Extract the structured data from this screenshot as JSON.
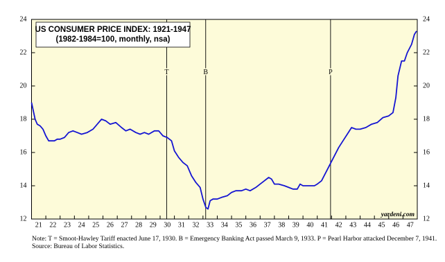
{
  "chart_data": {
    "type": "line",
    "title": "US CONSUMER PRICE INDEX: 1921-1947",
    "subtitle": "(1982-1984=100, monthly, nsa)",
    "source_label": "yardeni.com",
    "note": "Note: T = Smoot-Hawley Tariff enacted June 17, 1930. B = Emergency Banking Act passed March 9, 1933. P = Pearl Harbor attacked December 7, 1941.",
    "source": "Source: Bureau of Labor Statistics.",
    "background": "#fdfbd9",
    "x": [
      1921.0,
      1921.1,
      1921.25,
      1921.4,
      1921.6,
      1921.8,
      1922.0,
      1922.2,
      1922.4,
      1922.6,
      1922.8,
      1923.0,
      1923.3,
      1923.6,
      1923.9,
      1924.2,
      1924.5,
      1924.9,
      1925.3,
      1925.6,
      1925.9,
      1926.2,
      1926.5,
      1926.9,
      1927.3,
      1927.6,
      1927.9,
      1928.3,
      1928.6,
      1928.9,
      1929.2,
      1929.6,
      1929.9,
      1930.2,
      1930.5,
      1930.8,
      1931.0,
      1931.3,
      1931.6,
      1931.9,
      1932.2,
      1932.5,
      1932.8,
      1933.0,
      1933.2,
      1933.35,
      1933.5,
      1933.7,
      1934.0,
      1934.3,
      1934.7,
      1935.0,
      1935.3,
      1935.7,
      1936.0,
      1936.3,
      1936.7,
      1937.0,
      1937.3,
      1937.6,
      1937.8,
      1938.0,
      1938.3,
      1938.7,
      1939.0,
      1939.3,
      1939.6,
      1939.8,
      1940.0,
      1940.4,
      1940.8,
      1941.0,
      1941.3,
      1941.6,
      1941.9,
      1942.2,
      1942.5,
      1942.8,
      1943.1,
      1943.4,
      1943.7,
      1944.0,
      1944.4,
      1944.8,
      1945.2,
      1945.6,
      1946.0,
      1946.3,
      1946.5,
      1946.65,
      1946.9,
      1947.1,
      1947.3,
      1947.6,
      1947.8,
      1947.95
    ],
    "series": [
      {
        "name": "CPI",
        "color": "#1414d2",
        "values": [
          19.0,
          18.6,
          18.0,
          17.7,
          17.6,
          17.4,
          17.0,
          16.7,
          16.7,
          16.7,
          16.8,
          16.8,
          16.9,
          17.2,
          17.3,
          17.2,
          17.1,
          17.2,
          17.4,
          17.7,
          18.0,
          17.9,
          17.7,
          17.8,
          17.5,
          17.3,
          17.4,
          17.2,
          17.1,
          17.2,
          17.1,
          17.3,
          17.3,
          17.0,
          16.9,
          16.7,
          16.1,
          15.7,
          15.4,
          15.2,
          14.6,
          14.2,
          13.9,
          13.2,
          12.7,
          12.6,
          13.1,
          13.2,
          13.2,
          13.3,
          13.4,
          13.6,
          13.7,
          13.7,
          13.8,
          13.7,
          13.9,
          14.1,
          14.3,
          14.5,
          14.4,
          14.1,
          14.1,
          14.0,
          13.9,
          13.8,
          13.8,
          14.1,
          14.0,
          14.0,
          14.0,
          14.1,
          14.3,
          14.8,
          15.3,
          15.8,
          16.3,
          16.7,
          17.1,
          17.5,
          17.4,
          17.4,
          17.5,
          17.7,
          17.8,
          18.1,
          18.2,
          18.4,
          19.3,
          20.6,
          21.5,
          21.5,
          22.0,
          22.5,
          23.1,
          23.3
        ]
      }
    ],
    "xlim": [
      1921,
      1948
    ],
    "xticks": [
      {
        "value": 1921,
        "label": "21"
      },
      {
        "value": 1922,
        "label": "22"
      },
      {
        "value": 1923,
        "label": "23"
      },
      {
        "value": 1924,
        "label": "24"
      },
      {
        "value": 1925,
        "label": "25"
      },
      {
        "value": 1926,
        "label": "26"
      },
      {
        "value": 1927,
        "label": "27"
      },
      {
        "value": 1928,
        "label": "28"
      },
      {
        "value": 1929,
        "label": "29"
      },
      {
        "value": 1930,
        "label": "30"
      },
      {
        "value": 1931,
        "label": "31"
      },
      {
        "value": 1932,
        "label": "32"
      },
      {
        "value": 1933,
        "label": "33"
      },
      {
        "value": 1934,
        "label": "34"
      },
      {
        "value": 1935,
        "label": "35"
      },
      {
        "value": 1936,
        "label": "36"
      },
      {
        "value": 1937,
        "label": "37"
      },
      {
        "value": 1938,
        "label": "38"
      },
      {
        "value": 1939,
        "label": "39"
      },
      {
        "value": 1940,
        "label": "40"
      },
      {
        "value": 1941,
        "label": "41"
      },
      {
        "value": 1942,
        "label": "42"
      },
      {
        "value": 1943,
        "label": "43"
      },
      {
        "value": 1944,
        "label": "44"
      },
      {
        "value": 1945,
        "label": "45"
      },
      {
        "value": 1946,
        "label": "46"
      },
      {
        "value": 1947,
        "label": "47"
      }
    ],
    "ylim": [
      12,
      24
    ],
    "yticks": [
      12,
      14,
      16,
      18,
      20,
      22,
      24
    ],
    "annotations": [
      {
        "label": "T",
        "x": 1930.46
      },
      {
        "label": "B",
        "x": 1933.19
      },
      {
        "label": "P",
        "x": 1941.93
      }
    ]
  }
}
